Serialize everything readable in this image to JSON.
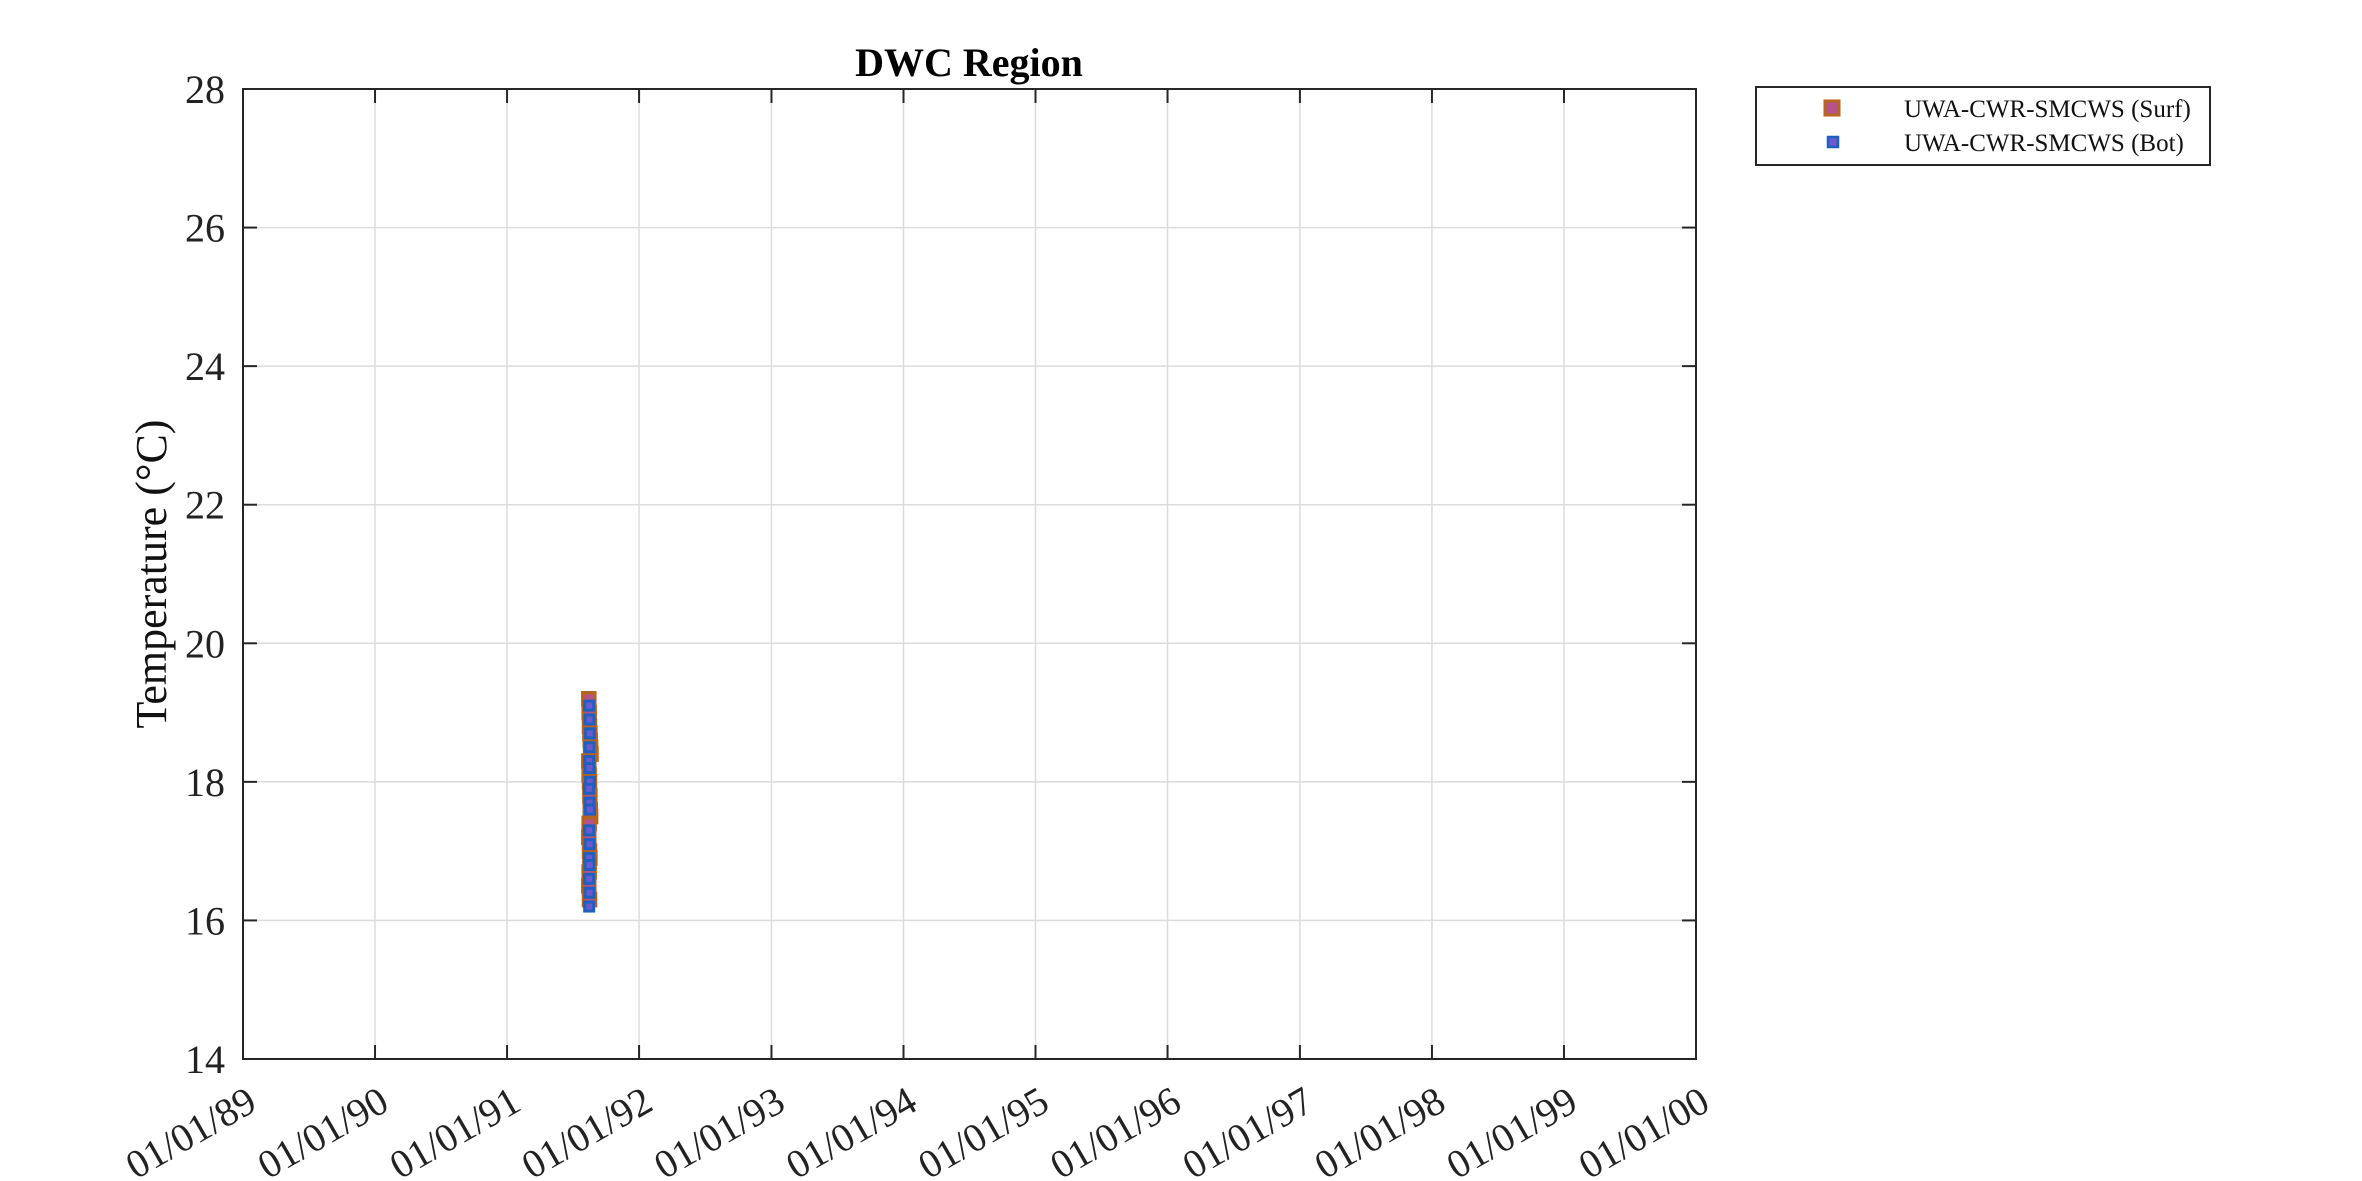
{
  "chart_data": {
    "type": "scatter",
    "title": "DWC Region",
    "xlabel": "",
    "ylabel": "Temperature (°C)",
    "ylim": [
      14,
      28
    ],
    "yticks": [
      14,
      16,
      18,
      20,
      22,
      24,
      26,
      28
    ],
    "xlim": [
      "1989-01-01",
      "2000-01-01"
    ],
    "xticks": [
      "1989-01-01",
      "1990-01-01",
      "1991-01-01",
      "1992-01-01",
      "1993-01-01",
      "1994-01-01",
      "1995-01-01",
      "1996-01-01",
      "1997-01-01",
      "1998-01-01",
      "1999-01-01",
      "2000-01-01"
    ],
    "xtick_labels": [
      "01/01/89",
      "01/01/90",
      "01/01/91",
      "01/01/92",
      "01/01/93",
      "01/01/94",
      "01/01/95",
      "01/01/96",
      "01/01/97",
      "01/01/98",
      "01/01/99",
      "01/01/00"
    ],
    "grid": true,
    "legend_position": "outside top-right",
    "series": [
      {
        "name": "UWA-CWR-SMCWS (Surf)",
        "marker": "square",
        "face_color": "#b8508a",
        "edge_color": "#b5651d",
        "points": [
          [
            "1991-08-15",
            19.2
          ],
          [
            "1991-08-16",
            19.0
          ],
          [
            "1991-08-17",
            18.8
          ],
          [
            "1991-08-18",
            18.7
          ],
          [
            "1991-08-19",
            18.6
          ],
          [
            "1991-08-20",
            18.5
          ],
          [
            "1991-08-21",
            18.4
          ],
          [
            "1991-08-15",
            18.3
          ],
          [
            "1991-08-16",
            18.1
          ],
          [
            "1991-08-17",
            18.0
          ],
          [
            "1991-08-18",
            17.8
          ],
          [
            "1991-08-19",
            17.6
          ],
          [
            "1991-08-20",
            17.5
          ],
          [
            "1991-08-16",
            17.4
          ],
          [
            "1991-08-15",
            17.2
          ],
          [
            "1991-08-17",
            17.0
          ],
          [
            "1991-08-18",
            16.9
          ],
          [
            "1991-08-16",
            16.7
          ],
          [
            "1991-08-15",
            16.5
          ],
          [
            "1991-08-17",
            16.3
          ]
        ]
      },
      {
        "name": "UWA-CWR-SMCWS (Bot)",
        "marker": "square",
        "face_color": "#6a5acd",
        "edge_color": "#1f5fbf",
        "points": [
          [
            "1991-08-16",
            19.1
          ],
          [
            "1991-08-17",
            18.9
          ],
          [
            "1991-08-18",
            18.7
          ],
          [
            "1991-08-17",
            18.5
          ],
          [
            "1991-08-16",
            18.3
          ],
          [
            "1991-08-17",
            18.2
          ],
          [
            "1991-08-18",
            18.0
          ],
          [
            "1991-08-16",
            17.9
          ],
          [
            "1991-08-17",
            17.7
          ],
          [
            "1991-08-18",
            17.6
          ],
          [
            "1991-08-16",
            17.3
          ],
          [
            "1991-08-17",
            17.1
          ],
          [
            "1991-08-16",
            16.9
          ],
          [
            "1991-08-17",
            16.8
          ],
          [
            "1991-08-16",
            16.6
          ],
          [
            "1991-08-17",
            16.4
          ],
          [
            "1991-08-16",
            16.2
          ]
        ]
      }
    ]
  }
}
